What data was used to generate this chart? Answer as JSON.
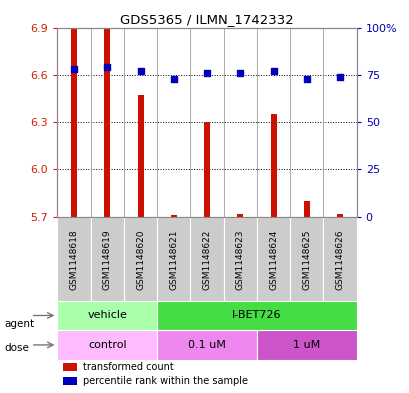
{
  "title": "GDS5365 / ILMN_1742332",
  "samples": [
    "GSM1148618",
    "GSM1148619",
    "GSM1148620",
    "GSM1148621",
    "GSM1148622",
    "GSM1148623",
    "GSM1148624",
    "GSM1148625",
    "GSM1148626"
  ],
  "red_values": [
    6.9,
    6.9,
    6.47,
    5.71,
    6.3,
    5.72,
    6.35,
    5.8,
    5.72
  ],
  "blue_values": [
    78,
    79,
    77,
    73,
    76,
    76,
    77,
    73,
    74
  ],
  "y_min": 5.7,
  "y_max": 6.9,
  "y_ticks": [
    5.7,
    6.0,
    6.3,
    6.6,
    6.9
  ],
  "y2_ticks": [
    0,
    25,
    50,
    75,
    100
  ],
  "y2_tick_labels": [
    "0",
    "25",
    "50",
    "75",
    "100%"
  ],
  "agent_groups": [
    {
      "label": "vehicle",
      "start": 0,
      "end": 3,
      "color": "#aaffaa"
    },
    {
      "label": "I-BET726",
      "start": 3,
      "end": 9,
      "color": "#44dd44"
    }
  ],
  "dose_groups": [
    {
      "label": "control",
      "start": 0,
      "end": 3,
      "color": "#ffbbff"
    },
    {
      "label": "0.1 uM",
      "start": 3,
      "end": 6,
      "color": "#ee88ee"
    },
    {
      "label": "1 uM",
      "start": 6,
      "end": 9,
      "color": "#cc44cc"
    }
  ],
  "bar_color": "#cc1100",
  "dot_color": "#0000bb",
  "bg_color": "#cccccc",
  "left_label_color": "#cc2200",
  "right_label_color": "#0000bb"
}
